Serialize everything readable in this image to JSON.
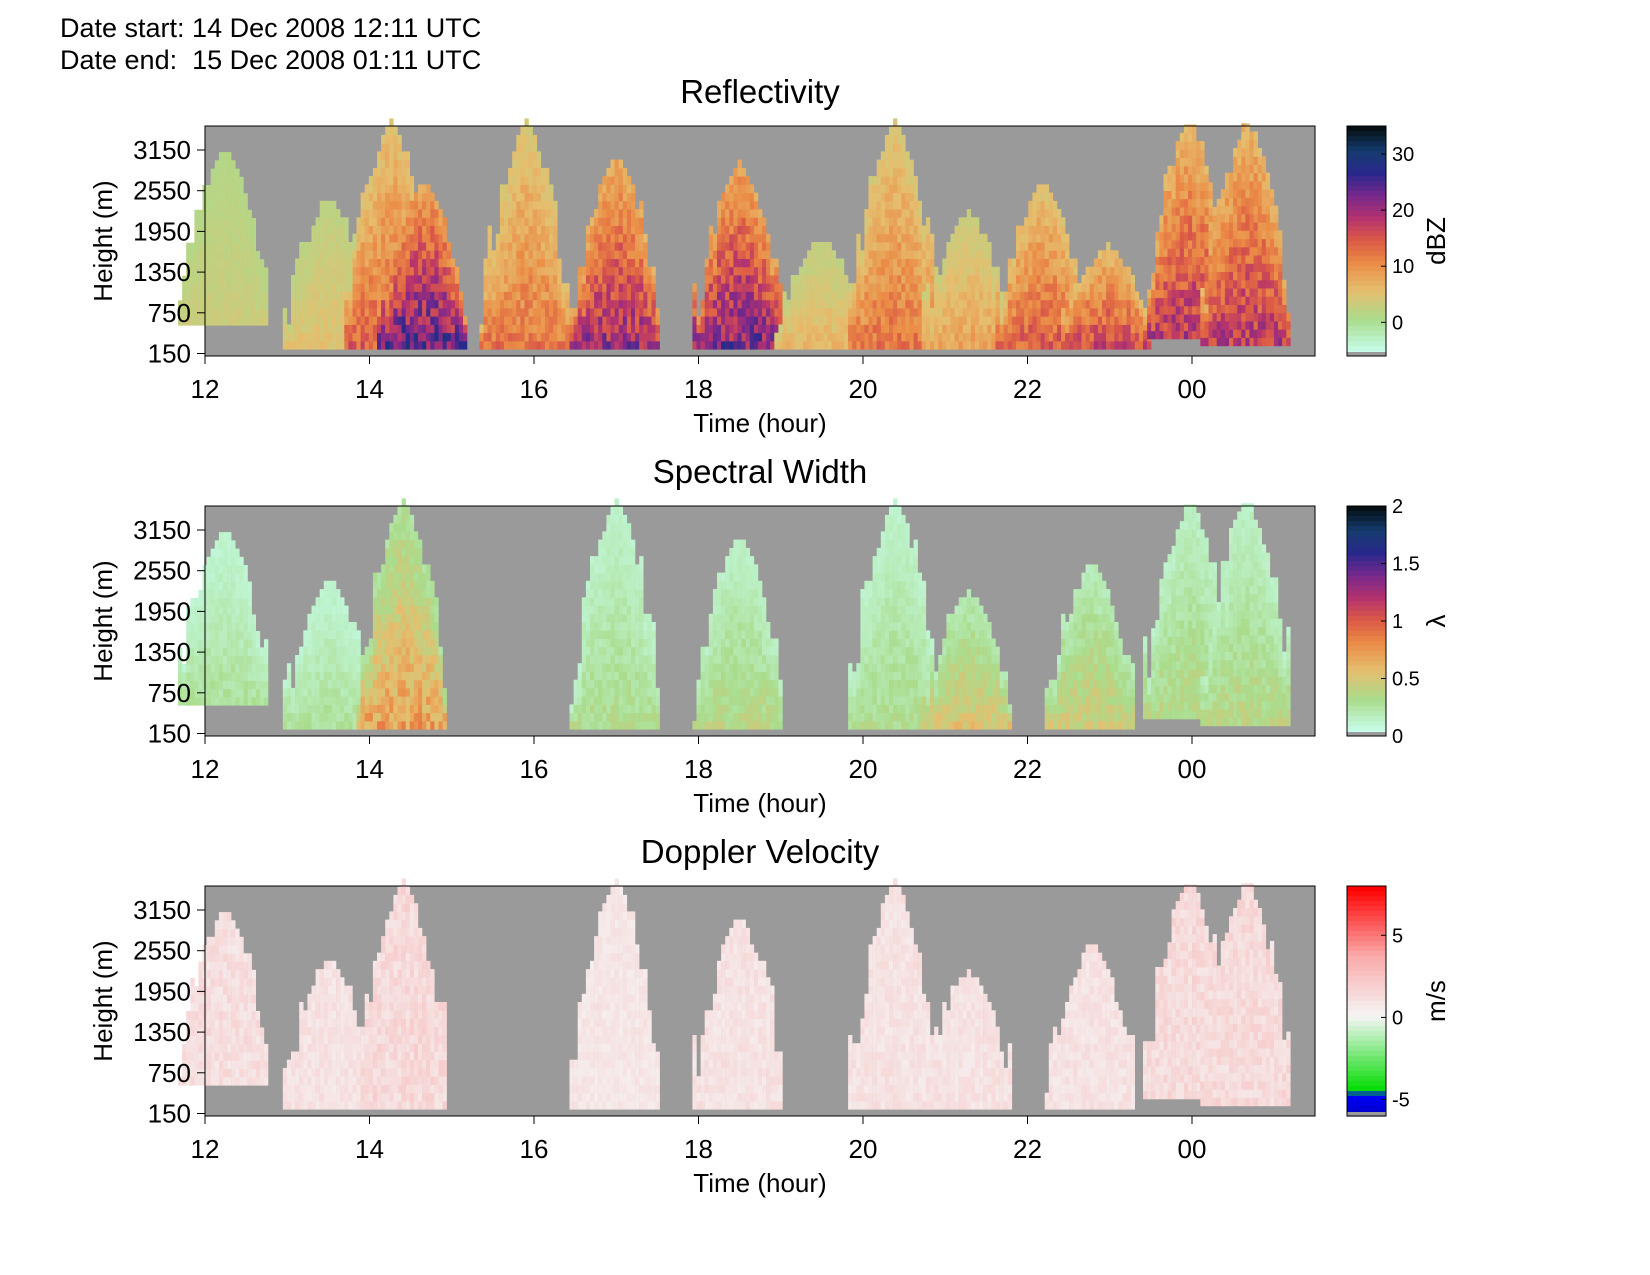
{
  "header": {
    "date_start": "Date start: 14 Dec 2008 12:11 UTC",
    "date_end": "Date end:  15 Dec 2008 01:11 UTC"
  },
  "colors": {
    "no_data": "#9a9a9a",
    "background": "#ffffff"
  },
  "chart_data": [
    {
      "type": "heatmap",
      "title": "Reflectivity",
      "xlabel": "Time (hour)",
      "ylabel": "Height (m)",
      "x_ticks": [
        "12",
        "14",
        "16",
        "18",
        "20",
        "22",
        "00"
      ],
      "y_ticks": [
        "3150",
        "2550",
        "1950",
        "1350",
        "750",
        "150"
      ],
      "colorbar": {
        "label": "dBZ",
        "ticks": [
          "30",
          "20",
          "10",
          "0"
        ],
        "range": [
          -6,
          35
        ]
      },
      "x_range_hours": [
        12.0,
        25.55
      ],
      "y_range_m": [
        150,
        3500
      ],
      "echoes": [
        {
          "t": 12.22,
          "h0": 600,
          "h1": 3100,
          "v": 3
        },
        {
          "t": 13.5,
          "h0": 250,
          "h1": 2400,
          "v": 5
        },
        {
          "t": 14.25,
          "h0": 250,
          "h1": 3500,
          "v": 14
        },
        {
          "t": 14.65,
          "h0": 250,
          "h1": 2600,
          "v": 24
        },
        {
          "t": 15.9,
          "h0": 250,
          "h1": 3500,
          "v": 12
        },
        {
          "t": 17.0,
          "h0": 250,
          "h1": 3000,
          "v": 20
        },
        {
          "t": 18.5,
          "h0": 250,
          "h1": 2900,
          "v": 22
        },
        {
          "t": 19.5,
          "h0": 250,
          "h1": 1800,
          "v": 6
        },
        {
          "t": 20.4,
          "h0": 250,
          "h1": 3500,
          "v": 12
        },
        {
          "t": 21.3,
          "h0": 250,
          "h1": 2200,
          "v": 8
        },
        {
          "t": 22.2,
          "h0": 250,
          "h1": 2600,
          "v": 14
        },
        {
          "t": 23.0,
          "h0": 250,
          "h1": 1700,
          "v": 16
        },
        {
          "t": 24.0,
          "h0": 400,
          "h1": 3500,
          "v": 18
        },
        {
          "t": 24.7,
          "h0": 300,
          "h1": 3500,
          "v": 18
        }
      ]
    },
    {
      "type": "heatmap",
      "title": "Spectral Width",
      "xlabel": "Time (hour)",
      "ylabel": "Height (m)",
      "x_ticks": [
        "12",
        "14",
        "16",
        "18",
        "20",
        "22",
        "00"
      ],
      "y_ticks": [
        "3150",
        "2550",
        "1950",
        "1350",
        "750",
        "150"
      ],
      "colorbar": {
        "label": "λ",
        "ticks": [
          "2",
          "1.5",
          "1",
          "0.5",
          "0"
        ],
        "range": [
          0,
          2
        ]
      },
      "x_range_hours": [
        12.0,
        25.55
      ],
      "y_range_m": [
        150,
        3500
      ],
      "echoes": [
        {
          "t": 12.22,
          "h0": 600,
          "h1": 3100,
          "v": 0.25
        },
        {
          "t": 13.5,
          "h0": 250,
          "h1": 2400,
          "v": 0.25
        },
        {
          "t": 14.4,
          "h0": 250,
          "h1": 3500,
          "v": 0.7
        },
        {
          "t": 17.0,
          "h0": 250,
          "h1": 3500,
          "v": 0.3
        },
        {
          "t": 18.5,
          "h0": 250,
          "h1": 3000,
          "v": 0.35
        },
        {
          "t": 20.4,
          "h0": 250,
          "h1": 3500,
          "v": 0.3
        },
        {
          "t": 21.3,
          "h0": 250,
          "h1": 2200,
          "v": 0.5
        },
        {
          "t": 22.8,
          "h0": 250,
          "h1": 2600,
          "v": 0.45
        },
        {
          "t": 24.0,
          "h0": 400,
          "h1": 3500,
          "v": 0.35
        },
        {
          "t": 24.7,
          "h0": 300,
          "h1": 3500,
          "v": 0.35
        }
      ]
    },
    {
      "type": "heatmap",
      "title": "Doppler Velocity",
      "xlabel": "Time (hour)",
      "ylabel": "Height (m)",
      "x_ticks": [
        "12",
        "14",
        "16",
        "18",
        "20",
        "22",
        "00"
      ],
      "y_ticks": [
        "3150",
        "2550",
        "1950",
        "1350",
        "750",
        "150"
      ],
      "colorbar": {
        "label": "m/s",
        "ticks": [
          "5",
          "0",
          "-5"
        ],
        "range": [
          -6,
          8
        ]
      },
      "x_range_hours": [
        12.0,
        25.55
      ],
      "y_range_m": [
        150,
        3500
      ],
      "echoes": [
        {
          "t": 12.22,
          "h0": 600,
          "h1": 3100,
          "v": 1.2
        },
        {
          "t": 13.5,
          "h0": 250,
          "h1": 2400,
          "v": 1.0
        },
        {
          "t": 14.4,
          "h0": 250,
          "h1": 3500,
          "v": 1.5
        },
        {
          "t": 17.0,
          "h0": 250,
          "h1": 3500,
          "v": 0.8
        },
        {
          "t": 18.5,
          "h0": 250,
          "h1": 3000,
          "v": 1.0
        },
        {
          "t": 20.4,
          "h0": 250,
          "h1": 3500,
          "v": 1.0
        },
        {
          "t": 21.3,
          "h0": 250,
          "h1": 2200,
          "v": 1.0
        },
        {
          "t": 22.8,
          "h0": 250,
          "h1": 2600,
          "v": 1.0
        },
        {
          "t": 24.0,
          "h0": 400,
          "h1": 3500,
          "v": 1.4
        },
        {
          "t": 24.7,
          "h0": 300,
          "h1": 3500,
          "v": 1.4
        }
      ]
    }
  ]
}
